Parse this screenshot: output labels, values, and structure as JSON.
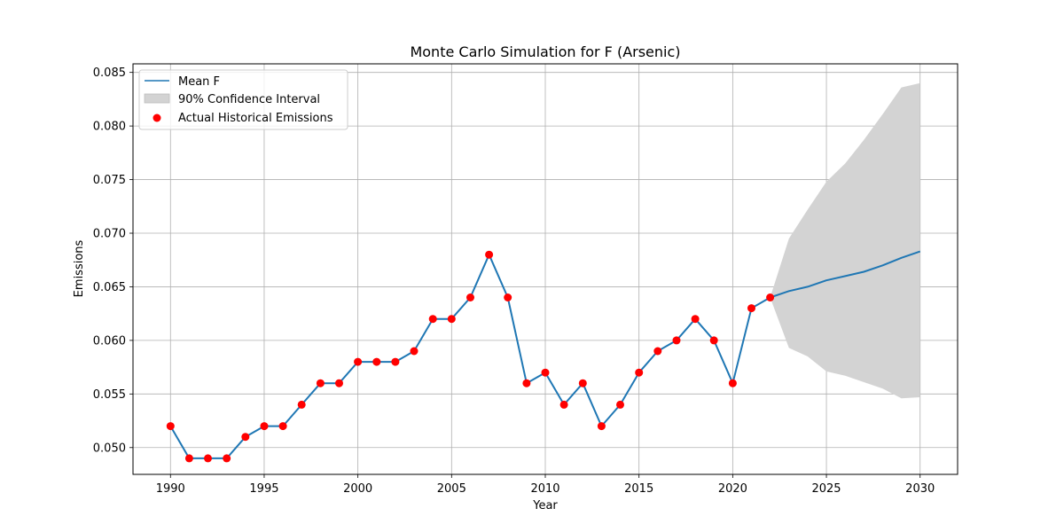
{
  "chart_data": {
    "type": "line",
    "title": "Monte Carlo Simulation for F (Arsenic)",
    "xlabel": "Year",
    "ylabel": "Emissions",
    "xlim": [
      1988.0,
      2032.0
    ],
    "ylim": [
      0.0475,
      0.0858
    ],
    "xticks": [
      1990,
      1995,
      2000,
      2005,
      2010,
      2015,
      2020,
      2025,
      2030
    ],
    "yticks": [
      0.05,
      0.055,
      0.06,
      0.065,
      0.07,
      0.075,
      0.08,
      0.085
    ],
    "ytick_labels": [
      "0.050",
      "0.055",
      "0.060",
      "0.065",
      "0.070",
      "0.075",
      "0.080",
      "0.085"
    ],
    "grid": true,
    "legend_position": "top-left",
    "colors": {
      "mean": "#1f77b4",
      "band": "#d3d3d3",
      "actual": "#ff0000"
    },
    "series": [
      {
        "name": "Mean F",
        "kind": "line",
        "x": [
          1990,
          1991,
          1992,
          1993,
          1994,
          1995,
          1996,
          1997,
          1998,
          1999,
          2000,
          2001,
          2002,
          2003,
          2004,
          2005,
          2006,
          2007,
          2008,
          2009,
          2010,
          2011,
          2012,
          2013,
          2014,
          2015,
          2016,
          2017,
          2018,
          2019,
          2020,
          2021,
          2022,
          2023,
          2024,
          2025,
          2026,
          2027,
          2028,
          2029,
          2030
        ],
        "values": [
          0.052,
          0.049,
          0.049,
          0.049,
          0.051,
          0.052,
          0.052,
          0.054,
          0.056,
          0.056,
          0.058,
          0.058,
          0.058,
          0.059,
          0.062,
          0.062,
          0.064,
          0.068,
          0.064,
          0.056,
          0.057,
          0.054,
          0.056,
          0.052,
          0.054,
          0.057,
          0.059,
          0.06,
          0.062,
          0.06,
          0.056,
          0.063,
          0.064,
          0.0646,
          0.065,
          0.0656,
          0.066,
          0.0664,
          0.067,
          0.0677,
          0.0683
        ]
      },
      {
        "name": "90% Confidence Interval",
        "kind": "band",
        "x": [
          2022,
          2023,
          2024,
          2025,
          2026,
          2027,
          2028,
          2029,
          2030
        ],
        "lower": [
          0.064,
          0.0593,
          0.0585,
          0.0571,
          0.0567,
          0.0561,
          0.0555,
          0.0546,
          0.0547
        ],
        "upper": [
          0.064,
          0.0695,
          0.0722,
          0.0748,
          0.0765,
          0.0787,
          0.0811,
          0.0836,
          0.084
        ]
      },
      {
        "name": "Actual Historical Emissions",
        "kind": "scatter",
        "x": [
          1990,
          1991,
          1992,
          1993,
          1994,
          1995,
          1996,
          1997,
          1998,
          1999,
          2000,
          2001,
          2002,
          2003,
          2004,
          2005,
          2006,
          2007,
          2008,
          2009,
          2010,
          2011,
          2012,
          2013,
          2014,
          2015,
          2016,
          2017,
          2018,
          2019,
          2020,
          2021,
          2022
        ],
        "values": [
          0.052,
          0.049,
          0.049,
          0.049,
          0.051,
          0.052,
          0.052,
          0.054,
          0.056,
          0.056,
          0.058,
          0.058,
          0.058,
          0.059,
          0.062,
          0.062,
          0.064,
          0.068,
          0.064,
          0.056,
          0.057,
          0.054,
          0.056,
          0.052,
          0.054,
          0.057,
          0.059,
          0.06,
          0.062,
          0.06,
          0.056,
          0.063,
          0.064
        ]
      }
    ]
  }
}
